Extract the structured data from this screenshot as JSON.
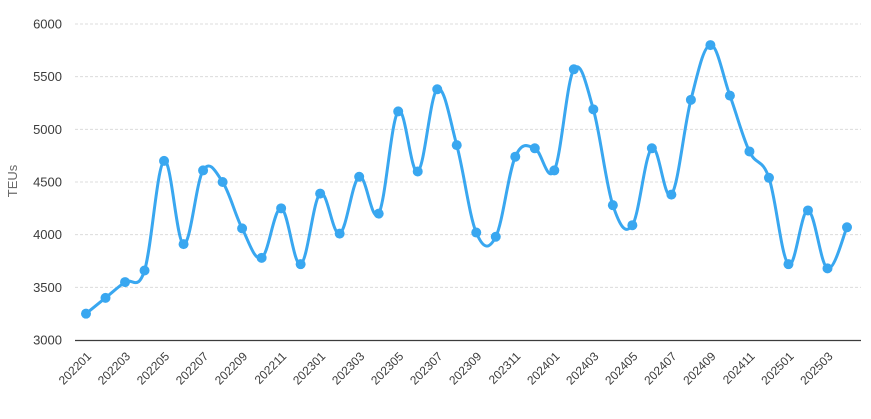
{
  "chart_data": {
    "type": "line",
    "title": "",
    "xlabel": "",
    "ylabel": "TEUs",
    "ylim": [
      3000,
      6000
    ],
    "y_ticks": [
      3000,
      3500,
      4000,
      4500,
      5000,
      5500,
      6000
    ],
    "x": [
      "202201",
      "202202",
      "202203",
      "202204",
      "202205",
      "202206",
      "202207",
      "202208",
      "202209",
      "202210",
      "202211",
      "202212",
      "202301",
      "202302",
      "202303",
      "202304",
      "202305",
      "202306",
      "202307",
      "202308",
      "202309",
      "202310",
      "202311",
      "202312",
      "202401",
      "202402",
      "202403",
      "202404",
      "202405",
      "202406",
      "202407",
      "202408",
      "202409",
      "202410",
      "202411",
      "202412",
      "202501",
      "202502",
      "202503",
      "202504"
    ],
    "x_tick_labels": [
      "202201",
      "202203",
      "202205",
      "202207",
      "202209",
      "202211",
      "202301",
      "202303",
      "202305",
      "202307",
      "202309",
      "202311",
      "202401",
      "202403",
      "202405",
      "202407",
      "202409",
      "202411",
      "202501",
      "202503"
    ],
    "values": [
      3250,
      3400,
      3550,
      3660,
      4700,
      3910,
      4610,
      4500,
      4060,
      3780,
      4250,
      3720,
      4390,
      4010,
      4550,
      4200,
      5170,
      4600,
      5380,
      4850,
      4020,
      3980,
      4740,
      4820,
      4610,
      5570,
      5190,
      4280,
      4090,
      4820,
      4380,
      5280,
      5800,
      5320,
      4790,
      4540,
      3720,
      4230,
      3680,
      4070
    ],
    "series_name": "TEUs",
    "legend": "none",
    "grid": "horizontal-dashed",
    "smooth": true,
    "marker": "circle",
    "style": {
      "line_color": "#39a7f0",
      "marker_color": "#39a7f0",
      "grid_color": "#dcdcdc",
      "axis_color": "#3c3c3c",
      "tick_label_color": "#3c3c3c",
      "axis_title_color": "#6b6b6b",
      "background": "#ffffff"
    }
  }
}
